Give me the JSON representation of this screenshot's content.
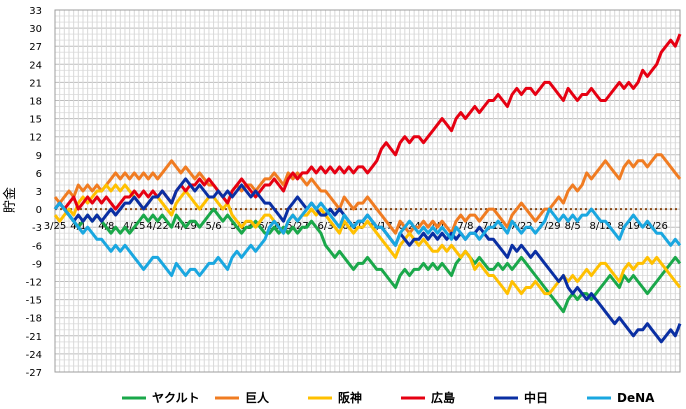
{
  "chart_data": {
    "type": "line",
    "title": "",
    "xlabel": "",
    "ylabel": "貯金",
    "ylim": [
      -27,
      33
    ],
    "yticks": [
      33,
      30,
      27,
      24,
      21,
      18,
      15,
      12,
      9,
      6,
      3,
      0,
      -3,
      -6,
      -9,
      -12,
      -15,
      -18,
      -21,
      -24,
      -27
    ],
    "games": 125,
    "grid": true,
    "legend_position": "bottom",
    "x_tick_labels": [
      {
        "game": 0,
        "label": "3/25"
      },
      {
        "game": 5,
        "label": "4/1"
      },
      {
        "game": 11,
        "label": "4/8"
      },
      {
        "game": 17,
        "label": "4/15"
      },
      {
        "game": 22,
        "label": "4/22"
      },
      {
        "game": 28,
        "label": "4/29"
      },
      {
        "game": 34,
        "label": "5/6"
      },
      {
        "game": 40,
        "label": "5/13"
      },
      {
        "game": 46,
        "label": "5/20"
      },
      {
        "game": 52,
        "label": "5/27"
      },
      {
        "game": 58,
        "label": "6/3"
      },
      {
        "game": 64,
        "label": "6/10"
      },
      {
        "game": 70,
        "label": "6/17"
      },
      {
        "game": 76,
        "label": "6/24"
      },
      {
        "game": 82,
        "label": "7/1"
      },
      {
        "game": 88,
        "label": "7/8"
      },
      {
        "game": 94,
        "label": "7/15"
      },
      {
        "game": 100,
        "label": "7/22"
      },
      {
        "game": 106,
        "label": "7/29"
      },
      {
        "game": 111,
        "label": "8/5"
      },
      {
        "game": 117,
        "label": "8/12"
      },
      {
        "game": 123,
        "label": "8/19"
      },
      {
        "game": 129,
        "label": "8/26"
      }
    ],
    "series": [
      {
        "name": "ヤクルト",
        "color": "#1aa84a",
        "anchors": [
          [
            0,
            0
          ],
          [
            5,
            -3
          ],
          [
            10,
            -2
          ],
          [
            16,
            -4
          ],
          [
            22,
            -2
          ],
          [
            26,
            -1
          ],
          [
            30,
            -2
          ],
          [
            34,
            0
          ],
          [
            38,
            -2
          ],
          [
            42,
            -3
          ],
          [
            46,
            -4
          ],
          [
            50,
            -4
          ],
          [
            54,
            -3
          ],
          [
            58,
            -6
          ],
          [
            62,
            -8
          ],
          [
            66,
            -9
          ],
          [
            70,
            -10
          ],
          [
            74,
            -11
          ],
          [
            78,
            -10
          ],
          [
            82,
            -10
          ],
          [
            86,
            -9
          ],
          [
            90,
            -9
          ],
          [
            94,
            -10
          ],
          [
            98,
            -10
          ],
          [
            102,
            -10
          ],
          [
            106,
            -14
          ],
          [
            110,
            -15
          ],
          [
            114,
            -14
          ],
          [
            118,
            -12
          ],
          [
            122,
            -11
          ],
          [
            126,
            -13
          ],
          [
            130,
            -11
          ],
          [
            134,
            -9
          ]
        ]
      },
      {
        "name": "巨人",
        "color": "#f07c22",
        "anchors": [
          [
            0,
            2
          ],
          [
            5,
            4
          ],
          [
            10,
            3
          ],
          [
            16,
            5
          ],
          [
            22,
            5
          ],
          [
            26,
            7
          ],
          [
            30,
            5
          ],
          [
            34,
            4
          ],
          [
            38,
            3
          ],
          [
            42,
            4
          ],
          [
            46,
            5
          ],
          [
            50,
            6
          ],
          [
            54,
            4
          ],
          [
            58,
            3
          ],
          [
            62,
            2
          ],
          [
            66,
            1
          ],
          [
            70,
            -1
          ],
          [
            74,
            -2
          ],
          [
            78,
            -3
          ],
          [
            82,
            -3
          ],
          [
            86,
            -2
          ],
          [
            90,
            -1
          ],
          [
            94,
            0
          ],
          [
            98,
            -1
          ],
          [
            102,
            -1
          ],
          [
            106,
            0
          ],
          [
            110,
            3
          ],
          [
            114,
            6
          ],
          [
            118,
            8
          ],
          [
            122,
            7
          ],
          [
            126,
            8
          ],
          [
            130,
            9
          ],
          [
            134,
            5
          ]
        ]
      },
      {
        "name": "阪神",
        "color": "#ffc000",
        "anchors": [
          [
            0,
            -1
          ],
          [
            5,
            1
          ],
          [
            10,
            3
          ],
          [
            16,
            3
          ],
          [
            22,
            2
          ],
          [
            26,
            1
          ],
          [
            30,
            1
          ],
          [
            34,
            2
          ],
          [
            38,
            -1
          ],
          [
            42,
            -2
          ],
          [
            46,
            -1
          ],
          [
            50,
            -2
          ],
          [
            54,
            -1
          ],
          [
            58,
            -1
          ],
          [
            62,
            -2
          ],
          [
            66,
            -3
          ],
          [
            70,
            -5
          ],
          [
            74,
            -6
          ],
          [
            78,
            -6
          ],
          [
            82,
            -7
          ],
          [
            86,
            -7
          ],
          [
            90,
            -10
          ],
          [
            94,
            -11
          ],
          [
            98,
            -12
          ],
          [
            102,
            -13
          ],
          [
            106,
            -14
          ],
          [
            110,
            -12
          ],
          [
            114,
            -10
          ],
          [
            118,
            -9
          ],
          [
            122,
            -10
          ],
          [
            126,
            -9
          ],
          [
            130,
            -9
          ],
          [
            134,
            -13
          ]
        ]
      },
      {
        "name": "広島",
        "color": "#e60012",
        "anchors": [
          [
            0,
            0
          ],
          [
            5,
            0
          ],
          [
            10,
            1
          ],
          [
            16,
            2
          ],
          [
            22,
            2
          ],
          [
            26,
            3
          ],
          [
            30,
            4
          ],
          [
            34,
            4
          ],
          [
            38,
            3
          ],
          [
            42,
            3
          ],
          [
            46,
            4
          ],
          [
            50,
            5
          ],
          [
            54,
            6
          ],
          [
            58,
            6
          ],
          [
            62,
            6
          ],
          [
            66,
            7
          ],
          [
            70,
            10
          ],
          [
            74,
            11
          ],
          [
            78,
            12
          ],
          [
            82,
            14
          ],
          [
            86,
            15
          ],
          [
            90,
            17
          ],
          [
            94,
            18
          ],
          [
            98,
            19
          ],
          [
            102,
            20
          ],
          [
            106,
            21
          ],
          [
            110,
            20
          ],
          [
            114,
            19
          ],
          [
            118,
            18
          ],
          [
            122,
            20
          ],
          [
            126,
            23
          ],
          [
            130,
            26
          ],
          [
            134,
            29
          ]
        ]
      },
      {
        "name": "中日",
        "color": "#0a2fa3",
        "anchors": [
          [
            0,
            0
          ],
          [
            5,
            -1
          ],
          [
            10,
            -2
          ],
          [
            16,
            1
          ],
          [
            22,
            2
          ],
          [
            26,
            3
          ],
          [
            30,
            3
          ],
          [
            34,
            2
          ],
          [
            38,
            2
          ],
          [
            42,
            2
          ],
          [
            46,
            1
          ],
          [
            50,
            0
          ],
          [
            54,
            0
          ],
          [
            58,
            -1
          ],
          [
            62,
            -1
          ],
          [
            66,
            -2
          ],
          [
            70,
            -3
          ],
          [
            74,
            -4
          ],
          [
            78,
            -5
          ],
          [
            82,
            -5
          ],
          [
            86,
            -5
          ],
          [
            90,
            -4
          ],
          [
            94,
            -5
          ],
          [
            98,
            -6
          ],
          [
            102,
            -8
          ],
          [
            106,
            -10
          ],
          [
            110,
            -13
          ],
          [
            114,
            -15
          ],
          [
            118,
            -17
          ],
          [
            122,
            -19
          ],
          [
            126,
            -20
          ],
          [
            130,
            -22
          ],
          [
            134,
            -19
          ]
        ]
      },
      {
        "name": "DeNA",
        "color": "#1aa7e0",
        "anchors": [
          [
            0,
            0
          ],
          [
            5,
            -3
          ],
          [
            10,
            -5
          ],
          [
            16,
            -7
          ],
          [
            22,
            -8
          ],
          [
            26,
            -9
          ],
          [
            30,
            -10
          ],
          [
            34,
            -9
          ],
          [
            38,
            -8
          ],
          [
            42,
            -6
          ],
          [
            46,
            -3
          ],
          [
            50,
            -2
          ],
          [
            54,
            0
          ],
          [
            58,
            0
          ],
          [
            62,
            -1
          ],
          [
            66,
            -2
          ],
          [
            70,
            -3
          ],
          [
            74,
            -4
          ],
          [
            78,
            -4
          ],
          [
            82,
            -4
          ],
          [
            86,
            -3
          ],
          [
            90,
            -4
          ],
          [
            94,
            -3
          ],
          [
            98,
            -2
          ],
          [
            102,
            -3
          ],
          [
            106,
            0
          ],
          [
            110,
            -2
          ],
          [
            114,
            -1
          ],
          [
            118,
            -2
          ],
          [
            122,
            -3
          ],
          [
            126,
            -3
          ],
          [
            130,
            -4
          ],
          [
            134,
            -6
          ]
        ]
      }
    ]
  }
}
